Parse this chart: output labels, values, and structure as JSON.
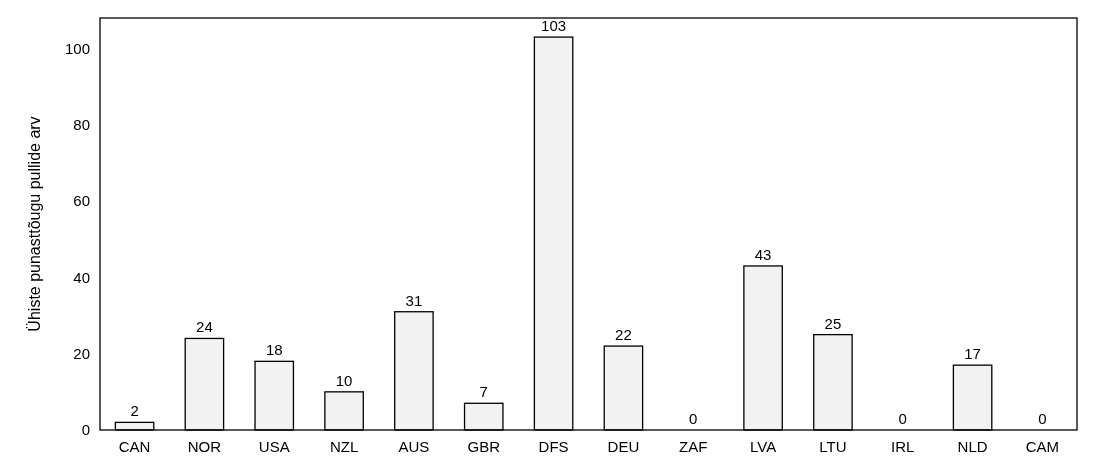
{
  "chart_data": {
    "type": "bar",
    "ylabel": "Ühiste punasttõugu pullide arv",
    "categories": [
      "CAN",
      "NOR",
      "USA",
      "NZL",
      "AUS",
      "GBR",
      "DFS",
      "DEU",
      "ZAF",
      "LVA",
      "LTU",
      "IRL",
      "NLD",
      "CAM"
    ],
    "values": [
      2,
      24,
      18,
      10,
      31,
      7,
      103,
      22,
      0,
      43,
      25,
      0,
      17,
      0
    ],
    "color": "#f2f2f2",
    "ylim": [
      0,
      108
    ],
    "yticks": [
      0,
      20,
      40,
      60,
      80,
      100
    ],
    "grid": false,
    "data_labels": true
  }
}
